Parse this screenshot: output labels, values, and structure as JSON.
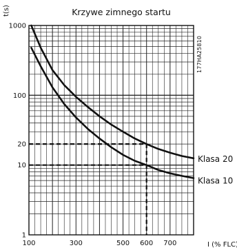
{
  "chart_data": {
    "type": "line",
    "title": "Krzywe zimnego startu",
    "ylabel": "t(s)",
    "xlabel": "I (% FLC)",
    "code": "177HA25810",
    "xlim": [
      100,
      800
    ],
    "ylim": [
      1,
      1000
    ],
    "y_scale": "log",
    "x_ticks": [
      "100",
      "300",
      "500",
      "600",
      "700"
    ],
    "y_ticks": [
      "1000",
      "100",
      "20",
      "10",
      "1"
    ],
    "grid": true,
    "series": [
      {
        "name": "Klasa 20",
        "points": [
          [
            110,
            1000
          ],
          [
            150,
            480
          ],
          [
            200,
            230
          ],
          [
            250,
            140
          ],
          [
            300,
            95
          ],
          [
            350,
            68
          ],
          [
            400,
            50
          ],
          [
            450,
            38
          ],
          [
            500,
            30
          ],
          [
            550,
            24
          ],
          [
            600,
            20
          ],
          [
            650,
            17
          ],
          [
            700,
            15
          ],
          [
            750,
            13.5
          ],
          [
            800,
            12.5
          ]
        ]
      },
      {
        "name": "Klasa 10",
        "points": [
          [
            110,
            480
          ],
          [
            150,
            260
          ],
          [
            200,
            130
          ],
          [
            250,
            75
          ],
          [
            300,
            48
          ],
          [
            350,
            33
          ],
          [
            400,
            24
          ],
          [
            450,
            18
          ],
          [
            500,
            14
          ],
          [
            550,
            11.5
          ],
          [
            600,
            10
          ],
          [
            650,
            8.5
          ],
          [
            700,
            7.6
          ],
          [
            750,
            7
          ],
          [
            800,
            6.5
          ]
        ]
      }
    ],
    "reference_lines": [
      {
        "x": 600,
        "y": 20
      },
      {
        "x": 600,
        "y": 10
      }
    ]
  }
}
